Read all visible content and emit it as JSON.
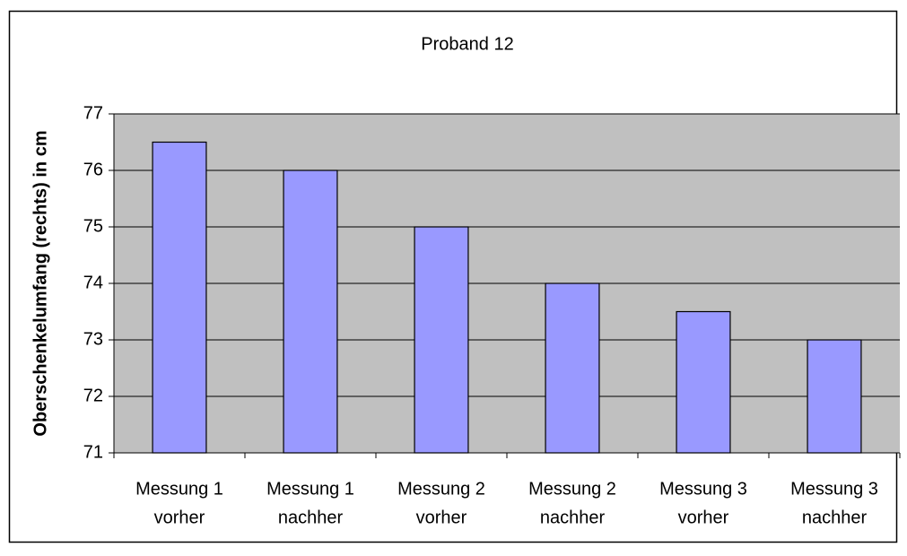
{
  "chart_data": {
    "type": "bar",
    "title": "Proband 12",
    "y_label": "Oberschenkelumfang (rechts) in cm",
    "categories": [
      [
        "Messung 1",
        "vorher"
      ],
      [
        "Messung 1",
        "nachher"
      ],
      [
        "Messung 2",
        "vorher"
      ],
      [
        "Messung 2",
        "nachher"
      ],
      [
        "Messung 3",
        "vorher"
      ],
      [
        "Messung 3",
        "nachher"
      ]
    ],
    "values": [
      76.5,
      76,
      75,
      74,
      73.5,
      73
    ],
    "color": "#9999ff",
    "ylim": [
      71,
      77
    ],
    "yticks": [
      71,
      72,
      73,
      74,
      75,
      76,
      77
    ],
    "grid": true
  }
}
